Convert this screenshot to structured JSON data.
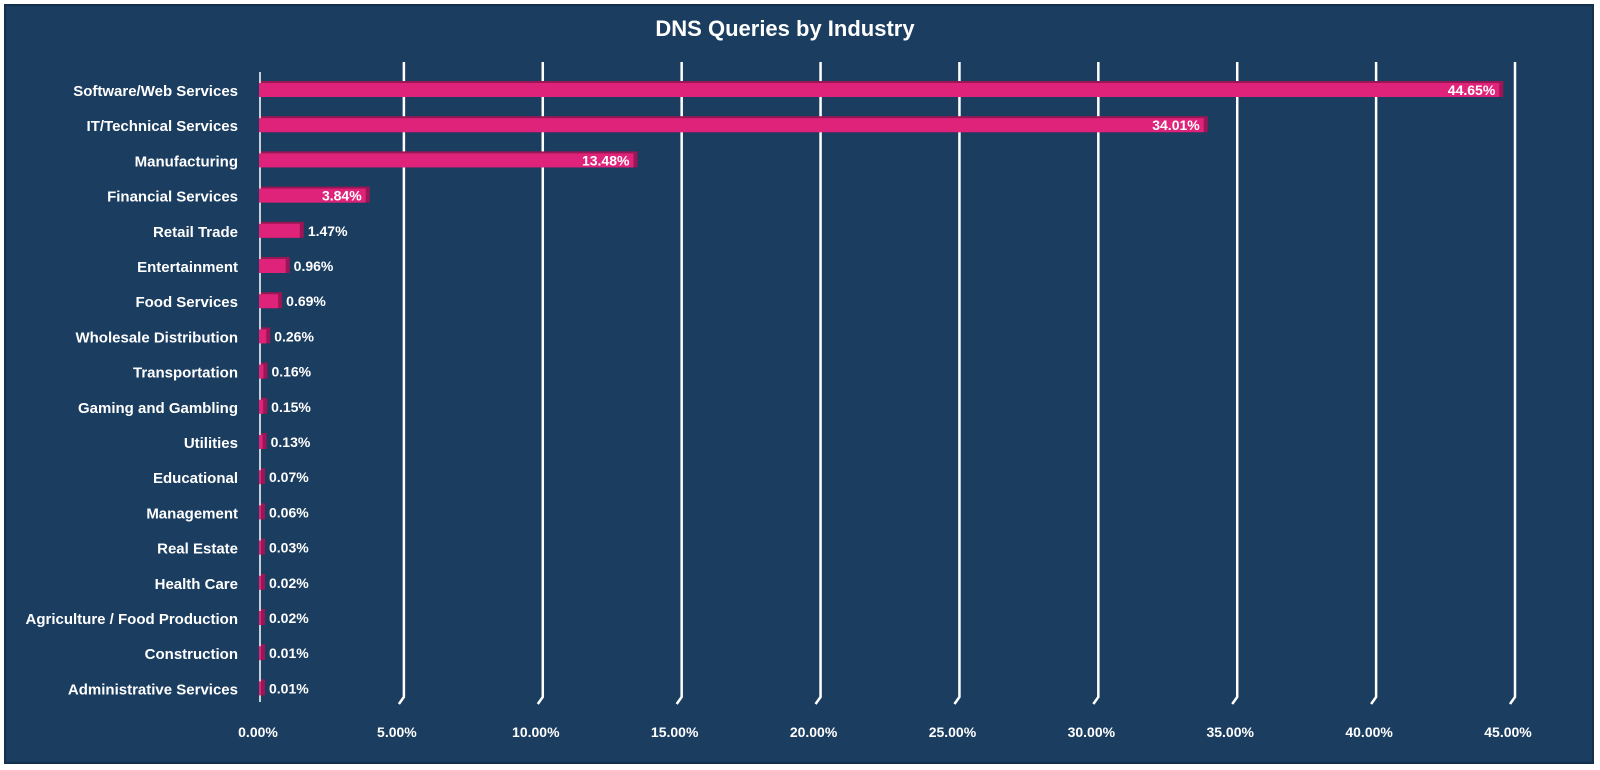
{
  "chart_data": {
    "type": "bar",
    "orientation": "horizontal",
    "title": "DNS Queries by Industry",
    "categories": [
      "Software/Web Services",
      "IT/Technical Services",
      "Manufacturing",
      "Financial Services",
      "Retail Trade",
      "Entertainment",
      "Food Services",
      "Wholesale Distribution",
      "Transportation",
      "Gaming and Gambling",
      "Utilities",
      "Educational",
      "Management",
      "Real Estate",
      "Health Care",
      "Agriculture / Food Production",
      "Construction",
      "Administrative Services"
    ],
    "values": [
      44.65,
      34.01,
      13.48,
      3.84,
      1.47,
      0.96,
      0.69,
      0.26,
      0.16,
      0.15,
      0.13,
      0.07,
      0.06,
      0.03,
      0.02,
      0.02,
      0.01,
      0.01
    ],
    "data_labels": [
      "44.65%",
      "34.01%",
      "13.48%",
      "3.84%",
      "1.47%",
      "0.96%",
      "0.69%",
      "0.26%",
      "0.16%",
      "0.15%",
      "0.13%",
      "0.07%",
      "0.06%",
      "0.03%",
      "0.02%",
      "0.02%",
      "0.01%",
      "0.01%"
    ],
    "xlim": [
      0,
      45
    ],
    "xticks": [
      0,
      5,
      10,
      15,
      20,
      25,
      30,
      35,
      40,
      45
    ],
    "xtick_labels": [
      "0.00%",
      "5.00%",
      "10.00%",
      "15.00%",
      "20.00%",
      "25.00%",
      "30.00%",
      "35.00%",
      "40.00%",
      "45.00%"
    ],
    "xlabel": "",
    "ylabel": "",
    "grid": true,
    "legend": "none",
    "colors": {
      "background": "#1b3d60",
      "bar": "#e0237a",
      "bar_shadow": "#9c1554",
      "grid": "#ffffff",
      "text": "#ffffff"
    }
  }
}
